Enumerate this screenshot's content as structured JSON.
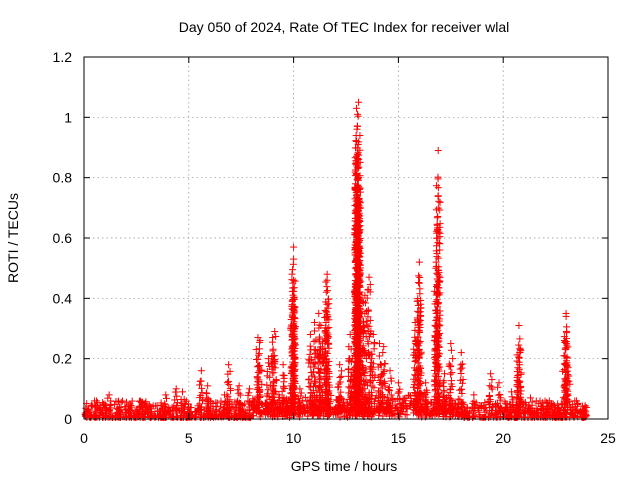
{
  "chart_data": {
    "type": "scatter",
    "title": "Day 050 of 2024, Rate Of TEC Index for receiver wlal",
    "xlabel": "GPS time / hours",
    "ylabel": "ROTI / TECUs",
    "xlim": [
      0,
      25
    ],
    "ylim": [
      0,
      1.2
    ],
    "x_ticks": [
      0,
      5,
      10,
      15,
      20,
      25
    ],
    "x_tick_labels": [
      "0",
      "5",
      "10",
      "15",
      "20",
      "25"
    ],
    "y_ticks": [
      0,
      0.2,
      0.4,
      0.6,
      0.8,
      1.0,
      1.2
    ],
    "y_tick_labels": [
      "0",
      "0.2",
      "0.4",
      "0.6",
      "0.8",
      "1",
      "1.2"
    ],
    "grid": true,
    "marker": "+",
    "color": "#ff0000",
    "series": [
      {
        "name": "ROTI",
        "points": [
          [
            0.15,
            0.03
          ],
          [
            0.6,
            0.06
          ],
          [
            1.0,
            0.05
          ],
          [
            1.2,
            0.08
          ],
          [
            1.7,
            0.04
          ],
          [
            2.2,
            0.05
          ],
          [
            3.0,
            0.04
          ],
          [
            3.9,
            0.08
          ],
          [
            4.4,
            0.1
          ],
          [
            4.7,
            0.09
          ],
          [
            5.6,
            0.16
          ],
          [
            5.9,
            0.11
          ],
          [
            6.7,
            0.08
          ],
          [
            6.9,
            0.18
          ],
          [
            7.4,
            0.11
          ],
          [
            7.9,
            0.1
          ],
          [
            8.3,
            0.27
          ],
          [
            8.4,
            0.26
          ],
          [
            8.8,
            0.2
          ],
          [
            9.0,
            0.27
          ],
          [
            9.1,
            0.29
          ],
          [
            9.3,
            0.08
          ],
          [
            9.5,
            0.18
          ],
          [
            9.95,
            0.39
          ],
          [
            10.0,
            0.46
          ],
          [
            10.0,
            0.53
          ],
          [
            10.0,
            0.57
          ],
          [
            10.0,
            0.31
          ],
          [
            10.3,
            0.1
          ],
          [
            10.8,
            0.28
          ],
          [
            11.0,
            0.32
          ],
          [
            11.2,
            0.35
          ],
          [
            11.3,
            0.31
          ],
          [
            11.5,
            0.36
          ],
          [
            11.6,
            0.48
          ],
          [
            11.6,
            0.46
          ],
          [
            11.7,
            0.14
          ],
          [
            12.2,
            0.18
          ],
          [
            12.7,
            0.28
          ],
          [
            12.8,
            0.2
          ],
          [
            13.0,
            0.53
          ],
          [
            13.0,
            0.6
          ],
          [
            13.05,
            0.68
          ],
          [
            13.1,
            0.71
          ],
          [
            13.1,
            0.77
          ],
          [
            13.0,
            0.81
          ],
          [
            13.1,
            0.86
          ],
          [
            13.0,
            0.92
          ],
          [
            13.05,
            0.97
          ],
          [
            13.05,
            1.01
          ],
          [
            13.0,
            1.03
          ],
          [
            13.1,
            1.05
          ],
          [
            13.3,
            0.39
          ],
          [
            13.4,
            0.41
          ],
          [
            13.6,
            0.47
          ],
          [
            13.8,
            0.28
          ],
          [
            14.1,
            0.25
          ],
          [
            14.3,
            0.24
          ],
          [
            14.6,
            0.16
          ],
          [
            15.0,
            0.12
          ],
          [
            15.8,
            0.32
          ],
          [
            15.9,
            0.39
          ],
          [
            16.0,
            0.45
          ],
          [
            16.0,
            0.52
          ],
          [
            16.3,
            0.12
          ],
          [
            16.8,
            0.35
          ],
          [
            16.8,
            0.52
          ],
          [
            16.9,
            0.74
          ],
          [
            16.9,
            0.89
          ],
          [
            17.2,
            0.15
          ],
          [
            17.5,
            0.25
          ],
          [
            18.0,
            0.22
          ],
          [
            18.6,
            0.08
          ],
          [
            19.4,
            0.15
          ],
          [
            19.8,
            0.12
          ],
          [
            20.4,
            0.09
          ],
          [
            20.75,
            0.31
          ],
          [
            20.8,
            0.22
          ],
          [
            20.7,
            0.17
          ],
          [
            21.3,
            0.07
          ],
          [
            22.2,
            0.06
          ],
          [
            22.6,
            0.05
          ],
          [
            22.9,
            0.21
          ],
          [
            23.0,
            0.34
          ],
          [
            23.0,
            0.35
          ],
          [
            23.1,
            0.17
          ],
          [
            23.5,
            0.06
          ],
          [
            23.9,
            0.04
          ]
        ]
      }
    ]
  }
}
